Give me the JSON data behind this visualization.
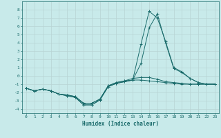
{
  "xlabel": "Humidex (Indice chaleur)",
  "bg_color": "#c8eaea",
  "grid_color": "#b8d4d4",
  "line_color": "#1a6b6b",
  "xlim": [
    -0.5,
    23.5
  ],
  "ylim": [
    -4.5,
    9.0
  ],
  "xticks": [
    0,
    1,
    2,
    3,
    4,
    5,
    6,
    7,
    8,
    9,
    10,
    11,
    12,
    13,
    14,
    15,
    16,
    17,
    18,
    19,
    20,
    21,
    22,
    23
  ],
  "yticks": [
    -4,
    -3,
    -2,
    -1,
    0,
    1,
    2,
    3,
    4,
    5,
    6,
    7,
    8
  ],
  "series": [
    [
      -1.5,
      -1.8,
      -1.6,
      -1.8,
      -2.2,
      -2.3,
      -2.5,
      -3.3,
      -3.3,
      -2.8,
      -1.2,
      -0.8,
      -0.6,
      -0.5,
      -0.5,
      -0.6,
      -0.7,
      -0.8,
      -0.9,
      -1.0,
      -1.0,
      -1.0,
      -1.0,
      -1.0
    ],
    [
      -1.5,
      -1.8,
      -1.6,
      -1.8,
      -2.2,
      -2.4,
      -2.6,
      -3.5,
      -3.5,
      -2.9,
      -1.3,
      -0.9,
      -0.7,
      -0.5,
      1.5,
      5.8,
      7.5,
      4.0,
      0.9,
      0.4,
      -0.3,
      -0.8,
      -1.0,
      -1.0
    ],
    [
      -1.5,
      -1.8,
      -1.6,
      -1.8,
      -2.2,
      -2.4,
      -2.6,
      -3.5,
      -3.5,
      -2.9,
      -1.3,
      -0.9,
      -0.7,
      -0.5,
      3.8,
      7.8,
      7.0,
      4.2,
      1.0,
      0.5,
      -0.3,
      -0.8,
      -1.0,
      -1.0
    ],
    [
      -1.5,
      -1.8,
      -1.6,
      -1.8,
      -2.2,
      -2.3,
      -2.5,
      -3.3,
      -3.3,
      -2.8,
      -1.2,
      -0.8,
      -0.6,
      -0.3,
      -0.2,
      -0.2,
      -0.4,
      -0.7,
      -0.8,
      -0.9,
      -1.0,
      -1.0,
      -1.0,
      -1.0
    ]
  ]
}
